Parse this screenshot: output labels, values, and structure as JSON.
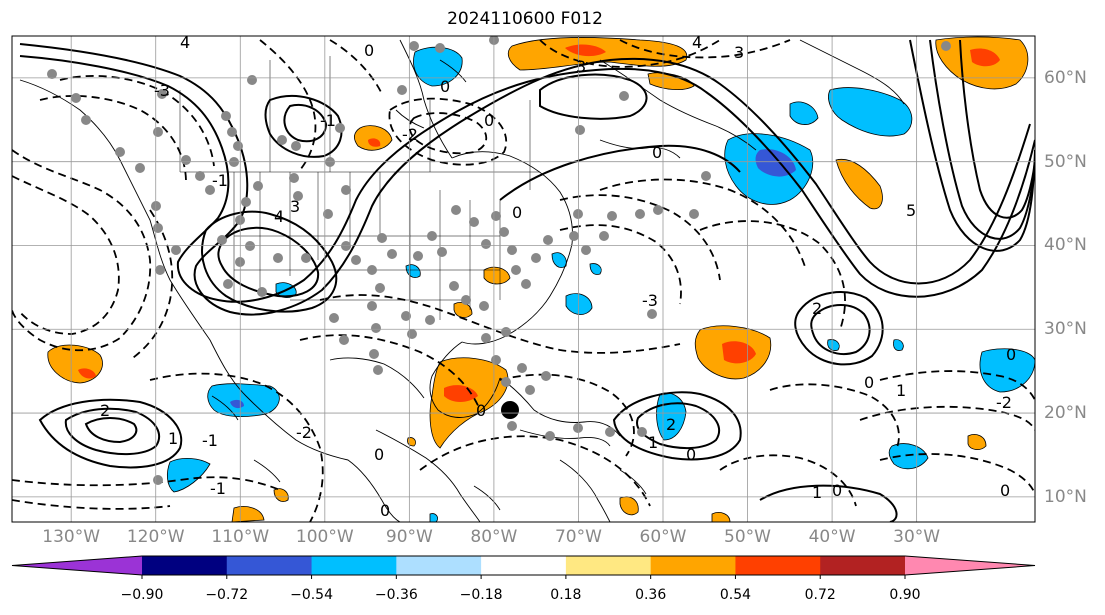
{
  "title": "2024110600 F012",
  "map": {
    "projection": "lat-lon",
    "lon_range": [
      -137,
      -16
    ],
    "lat_range": [
      7,
      65
    ],
    "lon_labels": [
      "130°W",
      "120°W",
      "110°W",
      "100°W",
      "90°W",
      "80°W",
      "70°W",
      "60°W",
      "50°W",
      "40°W",
      "30°W"
    ],
    "lon_values": [
      -130,
      -120,
      -110,
      -100,
      -90,
      -80,
      -70,
      -60,
      -50,
      -40,
      -30
    ],
    "lat_labels": [
      "60°N",
      "50°N",
      "40°N",
      "30°N",
      "20°N",
      "10°N"
    ],
    "lat_values": [
      60,
      50,
      40,
      30,
      20,
      10
    ],
    "gridlines": true,
    "contour_labels": [
      "0",
      "1",
      "2",
      "3",
      "4",
      "5",
      "-1",
      "-2",
      "-3"
    ]
  },
  "colorbar": {
    "extend": "both",
    "boundaries": [
      "−0.90",
      "−0.72",
      "−0.54",
      "−0.36",
      "−0.18",
      "0.18",
      "0.36",
      "0.54",
      "0.72",
      "0.90"
    ],
    "colors": [
      "#9b33d6",
      "#000080",
      "#3557d6",
      "#00bfff",
      "#addfff",
      "#ffffff",
      "#ffe882",
      "#ffa500",
      "#ff4000",
      "#b22222",
      "#ff88b0"
    ]
  }
}
